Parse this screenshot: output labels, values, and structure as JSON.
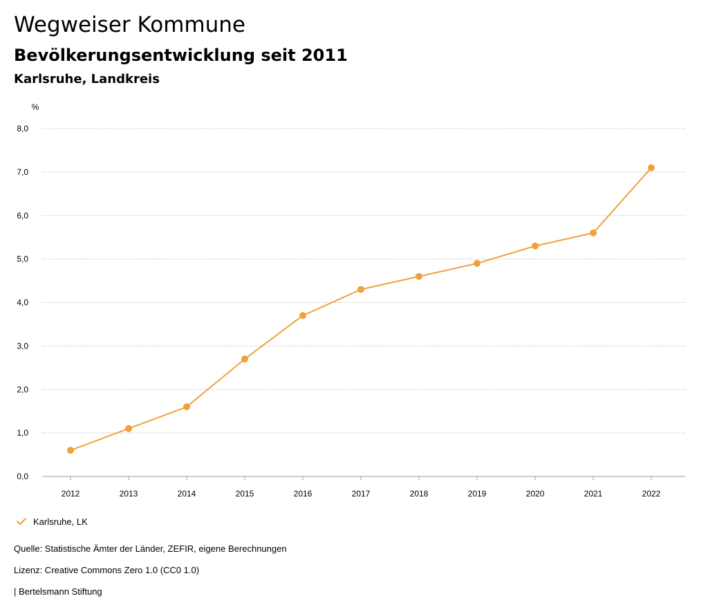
{
  "header": {
    "title": "Wegweiser Kommune",
    "subtitle": "Bevölkerungsentwicklung seit 2011",
    "region": "Karlsruhe, Landkreis"
  },
  "chart_data": {
    "type": "line",
    "title": "Bevölkerungsentwicklung seit 2011",
    "xlabel": "",
    "ylabel": "%",
    "categories": [
      "2012",
      "2013",
      "2014",
      "2015",
      "2016",
      "2017",
      "2018",
      "2019",
      "2020",
      "2021",
      "2022"
    ],
    "series": [
      {
        "name": "Karlsruhe, LK",
        "color": "#f0a03c",
        "values": [
          0.6,
          1.1,
          1.6,
          2.7,
          3.7,
          4.3,
          4.6,
          4.9,
          5.3,
          5.6,
          7.1
        ]
      }
    ],
    "ylim": [
      0,
      8
    ],
    "yticks": [
      "0,0",
      "1,0",
      "2,0",
      "3,0",
      "4,0",
      "5,0",
      "6,0",
      "7,0",
      "8,0"
    ],
    "grid": true,
    "legend_position": "bottom-left"
  },
  "legend": {
    "label": "Karlsruhe, LK"
  },
  "footer": {
    "source": "Quelle: Statistische Ämter der Länder, ZEFIR, eigene Berechnungen",
    "license": "Lizenz: Creative Commons Zero 1.0 (CC0 1.0)",
    "brand": "| Bertelsmann Stiftung"
  },
  "colors": {
    "accent": "#f0a03c",
    "grid": "#b0b0b0",
    "axis": "#999999",
    "text": "#000000"
  }
}
